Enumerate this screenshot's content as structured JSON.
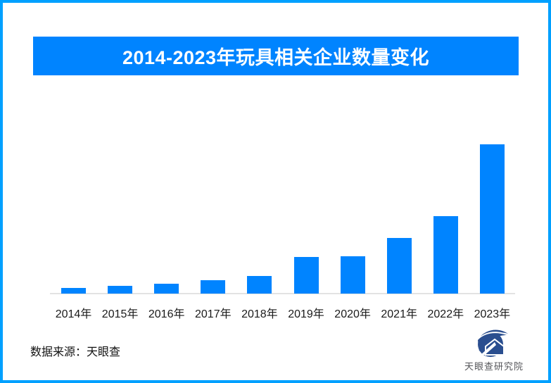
{
  "page": {
    "background_color": "#ffffff",
    "border_color": "#00a0ff"
  },
  "banner": {
    "title": "2014-2023年玩具相关企业数量变化",
    "bg_color": "#0084ff",
    "text_color": "#ffffff"
  },
  "chart_data": {
    "type": "bar",
    "title": "2014-2023年玩具相关企业数量变化",
    "categories": [
      "2014年",
      "2015年",
      "2016年",
      "2017年",
      "2018年",
      "2019年",
      "2020年",
      "2021年",
      "2022年",
      "2023年"
    ],
    "values": [
      8,
      11,
      14,
      19,
      25,
      52,
      53,
      79,
      110,
      212
    ],
    "value_axis_visible": false,
    "value_note": "no numeric axis, gridlines or data labels shown; values are relative bar heights (px), tallest bar 2023 = 212",
    "xlabel": "",
    "ylabel": "",
    "ylim": [
      0,
      230
    ],
    "gridlines": false,
    "legend": "none",
    "bar_color": "#0084ff",
    "axis_line_color": "#e3e3e3",
    "tick_label_color": "#1a1a1a"
  },
  "footer": {
    "source_text": "数据来源：天眼查",
    "logo_text": "天眼查研究院",
    "logo_icon": "tianyancha-eye-house-logo",
    "logo_color": "#2a4e8f",
    "logo_text_color": "#55565a"
  }
}
